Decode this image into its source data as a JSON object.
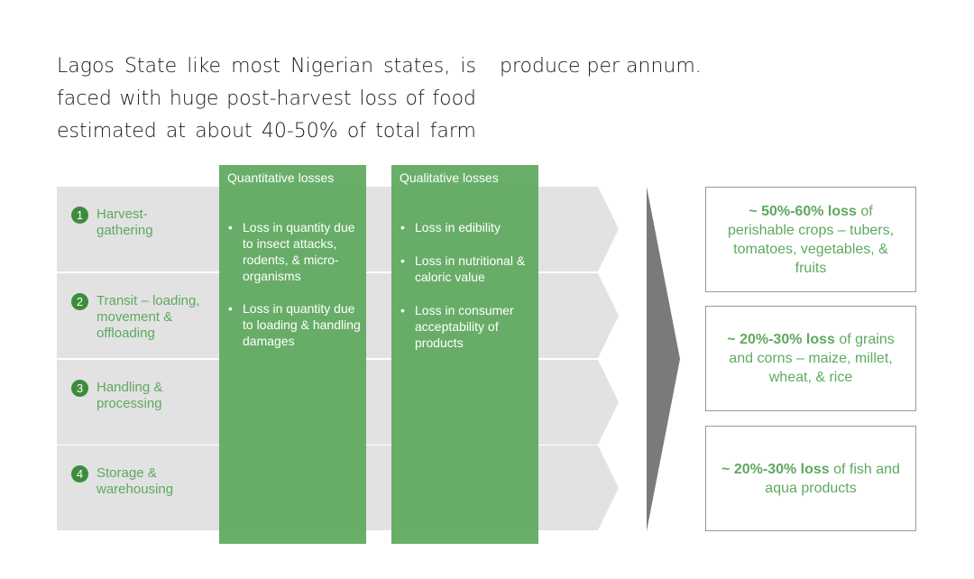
{
  "intro": {
    "lines": [
      "Lagos State like most Nigerian states, is",
      "faced with huge post-harvest loss of food",
      "estimated at about 40-50% of total farm"
    ],
    "continuation": "produce per annum."
  },
  "stages": [
    {
      "number": "1",
      "label": "Harvest-gathering"
    },
    {
      "number": "2",
      "label": "Transit – loading, movement & offloading"
    },
    {
      "number": "3",
      "label": "Handling & processing"
    },
    {
      "number": "4",
      "label": "Storage & warehousing"
    }
  ],
  "quantitative": {
    "title": "Quantitative losses",
    "items": [
      "Loss in quantity due to insect attacks, rodents, & micro-organisms",
      "Loss in quantity due to loading & handling damages"
    ]
  },
  "qualitative": {
    "title": "Qualitative losses",
    "items": [
      "Loss in edibility",
      "Loss in nutritional & caloric value",
      "Loss in consumer acceptability of products"
    ]
  },
  "results": [
    {
      "highlight": "~ 50%-60% loss",
      "rest": " of perishable crops – tubers, tomatoes, vegetables, & fruits"
    },
    {
      "highlight": "~ 20%-30% loss",
      "rest": " of grains and corns – maize, millet, wheat, & rice"
    },
    {
      "highlight": "~ 20%-30% loss",
      "rest": " of fish and aqua products"
    }
  ],
  "colors": {
    "green_dark": "#3c8c3c",
    "green_text": "#5ea95e",
    "green_column": "#5ca85c",
    "row_gray": "#e2e2e2",
    "arrow_gray": "#7a7a7a"
  }
}
